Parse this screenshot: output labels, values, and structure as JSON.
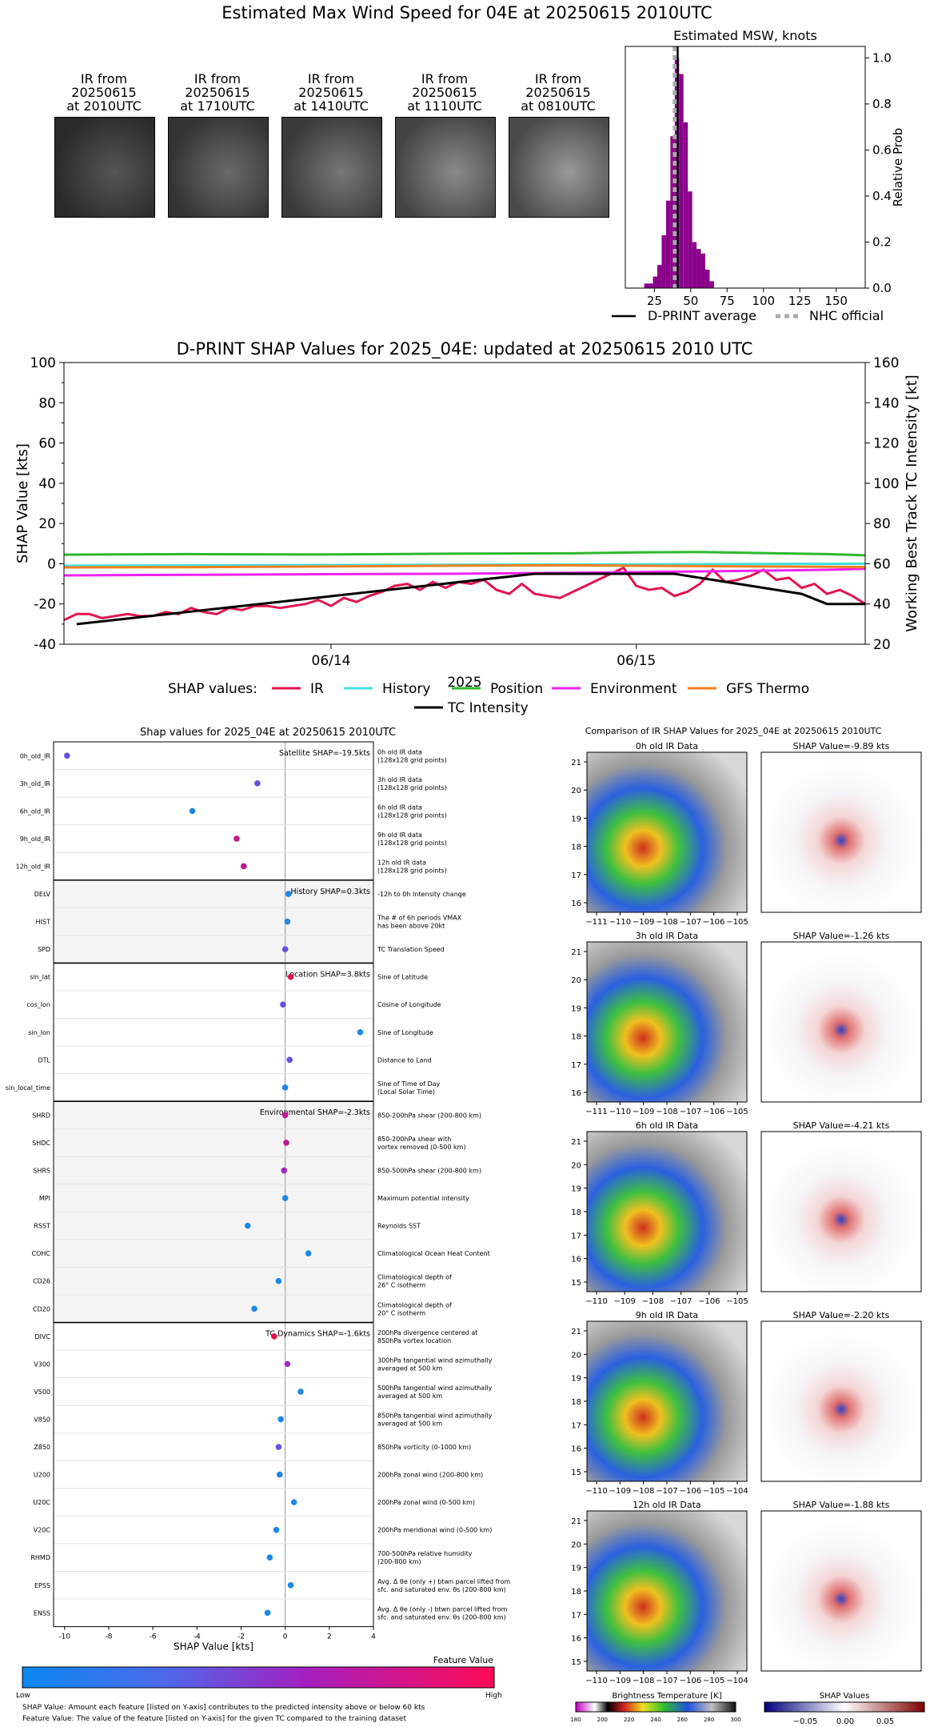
{
  "header": {
    "title": "Estimated Max Wind Speed for 04E at 20250615 2010UTC"
  },
  "ir_thumbs": [
    {
      "label_lines": [
        "IR from",
        "20250615",
        "at 2010UTC"
      ]
    },
    {
      "label_lines": [
        "IR from",
        "20250615",
        "at 1710UTC"
      ]
    },
    {
      "label_lines": [
        "IR from",
        "20250615",
        "at 1410UTC"
      ]
    },
    {
      "label_lines": [
        "IR from",
        "20250615",
        "at 1110UTC"
      ]
    },
    {
      "label_lines": [
        "IR from",
        "20250615",
        "at 0810UTC"
      ]
    }
  ],
  "chart_data": [
    {
      "type": "bar",
      "title": "Estimated MSW, knots",
      "ylabel": "Relative Prob",
      "xlim": [
        5,
        170
      ],
      "ylim": [
        0,
        1.05
      ],
      "xticks": [
        25,
        50,
        75,
        100,
        125,
        150
      ],
      "yticks": [
        0.0,
        0.2,
        0.4,
        0.6,
        0.8,
        1.0
      ],
      "bins": [
        18,
        21,
        24,
        27,
        30,
        33,
        36,
        39,
        42,
        45,
        48,
        51,
        54,
        57,
        60,
        63
      ],
      "bin_width": 3,
      "values": [
        0.02,
        0.02,
        0.05,
        0.1,
        0.23,
        0.38,
        0.66,
        1.0,
        0.93,
        0.72,
        0.42,
        0.2,
        0.17,
        0.15,
        0.08,
        0.03
      ],
      "color": "#8b008b",
      "dprint_average": 41,
      "nhc_official": 39,
      "legend": [
        {
          "label": "D-PRINT average",
          "style": "solid"
        },
        {
          "label": "NHC official",
          "style": "dotted"
        }
      ]
    },
    {
      "type": "line",
      "title": "D-PRINT SHAP Values for 2025_04E: updated at 20250615 2010 UTC",
      "xlabel": "2025",
      "ylabel": "SHAP Value [kts]",
      "y2label": "Working Best Track TC Intensity [kt]",
      "ylim": [
        -40,
        100
      ],
      "y2lim": [
        20,
        160
      ],
      "yticks": [
        -40,
        -20,
        0,
        20,
        40,
        60,
        80,
        100
      ],
      "y2ticks": [
        20,
        40,
        60,
        80,
        100,
        120,
        140,
        160
      ],
      "xticks": [
        {
          "label": "06/14",
          "t": 21
        },
        {
          "label": "06/15",
          "t": 45
        }
      ],
      "tlim": [
        0,
        63
      ],
      "series": [
        {
          "name": "IR",
          "color": "#e0164f",
          "t": [
            0,
            1,
            2,
            3,
            4,
            5,
            6,
            7,
            8,
            9,
            10,
            11,
            12,
            13,
            14,
            15,
            16,
            17,
            18,
            19,
            20,
            21,
            22,
            23,
            24,
            25,
            26,
            27,
            28,
            29,
            30,
            31,
            32,
            33,
            34,
            35,
            36,
            37,
            38,
            39,
            40,
            41,
            42,
            43,
            44,
            45,
            46,
            47,
            48,
            49,
            50,
            51,
            52,
            53,
            54,
            55,
            56,
            57,
            58,
            59,
            60,
            61,
            62,
            63
          ],
          "values": [
            -28,
            -25,
            -25,
            -27,
            -26,
            -25,
            -26,
            -26,
            -24,
            -25,
            -22,
            -24,
            -25,
            -22,
            -23,
            -21,
            -21,
            -22,
            -21,
            -20,
            -18,
            -21,
            -17,
            -19,
            -16,
            -14,
            -11,
            -10,
            -13,
            -9,
            -12,
            -9,
            -10,
            -8,
            -13,
            -15,
            -10,
            -15,
            -16,
            -17,
            -14,
            -11,
            -8,
            -5,
            -2,
            -11,
            -13,
            -12,
            -16,
            -14,
            -10,
            -3,
            -9,
            -8,
            -6,
            -3,
            -8,
            -7,
            -12,
            -10,
            -15,
            -13,
            -16,
            -20
          ]
        },
        {
          "name": "History",
          "color": "#40e0e0",
          "t": [
            0,
            63
          ],
          "values": [
            -1,
            0
          ]
        },
        {
          "name": "Position",
          "color": "#2db82d",
          "t": [
            0,
            10,
            20,
            30,
            40,
            45,
            50,
            55,
            60,
            63
          ],
          "values": [
            4.5,
            4.8,
            4.6,
            5.0,
            5.2,
            5.6,
            5.8,
            5.3,
            4.8,
            4.2
          ]
        },
        {
          "name": "Environment",
          "color": "#ee22ee",
          "t": [
            0,
            10,
            20,
            30,
            40,
            50,
            60,
            63
          ],
          "values": [
            -5.8,
            -5.5,
            -5.2,
            -5.0,
            -4.5,
            -3.8,
            -3.0,
            -2.5
          ]
        },
        {
          "name": "GFS Thermo",
          "color": "#f07f1e",
          "t": [
            0,
            10,
            20,
            30,
            40,
            50,
            60,
            63
          ],
          "values": [
            -1.8,
            -1.7,
            -1.4,
            -1.0,
            -0.8,
            -1.2,
            -1.5,
            -1.6
          ]
        },
        {
          "name": "TC Intensity",
          "color": "#000000",
          "axis": "right",
          "t": [
            1,
            37,
            48,
            58,
            60,
            63
          ],
          "values": [
            30,
            55,
            55,
            45,
            40,
            40
          ]
        }
      ],
      "legend_prefix": "SHAP values:"
    },
    {
      "type": "scatter",
      "title": "Shap values for 2025_04E at 20250615 2010UTC",
      "xlabel": "SHAP Value [kts]",
      "xlim": [
        -10.5,
        4
      ],
      "xticks": [
        -10,
        -8,
        -6,
        -4,
        -2,
        0,
        2,
        4
      ],
      "groups": [
        {
          "label": "Satellite SHAP=-19.5kts",
          "shaded": false,
          "features": [
            {
              "name": "0h_old_IR",
              "desc": [
                "0h old IR data",
                "(128x128 grid points)"
              ],
              "value": -9.89,
              "color": "#6a4de0"
            },
            {
              "name": "3h_old_IR",
              "desc": [
                "3h old IR data",
                "(128x128 grid points)"
              ],
              "value": -1.26,
              "color": "#6a4de0"
            },
            {
              "name": "6h_old_IR",
              "desc": [
                "6h old IR data",
                "(128x128 grid points)"
              ],
              "value": -4.21,
              "color": "#1e88e5"
            },
            {
              "name": "9h_old_IR",
              "desc": [
                "9h old IR data",
                "(128x128 grid points)"
              ],
              "value": -2.2,
              "color": "#c0198f"
            },
            {
              "name": "12h_old_IR",
              "desc": [
                "12h old IR data",
                "(128x128 grid points)"
              ],
              "value": -1.88,
              "color": "#c0198f"
            }
          ]
        },
        {
          "label": "History SHAP=0.3kts",
          "shaded": true,
          "features": [
            {
              "name": "DELV",
              "desc": [
                "-12h to 0h Intensity change"
              ],
              "value": 0.15,
              "color": "#1e88e5"
            },
            {
              "name": "HIST",
              "desc": [
                "The # of 6h periods VMAX",
                "has been above 20kt"
              ],
              "value": 0.1,
              "color": "#1e88e5"
            },
            {
              "name": "SPD",
              "desc": [
                "TC Translation Speed"
              ],
              "value": 0.0,
              "color": "#6a4de0"
            }
          ]
        },
        {
          "label": "Location SHAP=3.8kts",
          "shaded": false,
          "features": [
            {
              "name": "sin_lat",
              "desc": [
                "Sine of Latitude"
              ],
              "value": 0.25,
              "color": "#e0164f"
            },
            {
              "name": "cos_lon",
              "desc": [
                "Cosine of Longitude"
              ],
              "value": -0.1,
              "color": "#6a4de0"
            },
            {
              "name": "sin_lon",
              "desc": [
                "Sine of Longitude"
              ],
              "value": 3.4,
              "color": "#1e88e5"
            },
            {
              "name": "DTL",
              "desc": [
                "Distance to Land"
              ],
              "value": 0.2,
              "color": "#6a4de0"
            },
            {
              "name": "sin_local_time",
              "desc": [
                "Sine of Time of Day",
                "(Local Solar Time)"
              ],
              "value": 0.0,
              "color": "#1e88e5"
            }
          ]
        },
        {
          "label": "Environmental SHAP=-2.3kts",
          "shaded": true,
          "features": [
            {
              "name": "SHRD",
              "desc": [
                "850-200hPa shear (200-800 km)"
              ],
              "value": 0.0,
              "color": "#c0198f"
            },
            {
              "name": "SHDC",
              "desc": [
                "850-200hPa shear with",
                "vortex removed (0-500 km)"
              ],
              "value": 0.05,
              "color": "#c0198f"
            },
            {
              "name": "SHRS",
              "desc": [
                "850-500hPa shear (200-800 km)"
              ],
              "value": -0.05,
              "color": "#9b2bc0"
            },
            {
              "name": "MPI",
              "desc": [
                "Maximum potential intensity"
              ],
              "value": 0.0,
              "color": "#1e88e5"
            },
            {
              "name": "RSST",
              "desc": [
                "Reynolds SST"
              ],
              "value": -1.7,
              "color": "#1e88e5"
            },
            {
              "name": "COHC",
              "desc": [
                "Climatological Ocean Heat Content"
              ],
              "value": 1.05,
              "color": "#1e88e5"
            },
            {
              "name": "CD26",
              "desc": [
                "Climatological depth of",
                "26° C isotherm"
              ],
              "value": -0.3,
              "color": "#1e88e5"
            },
            {
              "name": "CD20",
              "desc": [
                "Climatological depth of",
                "20° C isotherm"
              ],
              "value": -1.4,
              "color": "#1e88e5"
            }
          ]
        },
        {
          "label": "TC Dynamics SHAP=-1.6kts",
          "shaded": false,
          "features": [
            {
              "name": "DIVC",
              "desc": [
                "200hPa divergence centered at",
                "850hPa vortex location"
              ],
              "value": -0.5,
              "color": "#e0164f"
            },
            {
              "name": "V300",
              "desc": [
                "300hPa tangential wind azimuthally",
                "averaged at 500 km"
              ],
              "value": 0.1,
              "color": "#9b2bc0"
            },
            {
              "name": "V500",
              "desc": [
                "500hPa tangential wind azimuthally",
                "averaged at 500 km"
              ],
              "value": 0.7,
              "color": "#1e88e5"
            },
            {
              "name": "V850",
              "desc": [
                "850hPa tangential wind azimuthally",
                "averaged at 500 km"
              ],
              "value": -0.2,
              "color": "#1e88e5"
            },
            {
              "name": "Z850",
              "desc": [
                "850hPa vorticity (0-1000 km)"
              ],
              "value": -0.3,
              "color": "#6a4de0"
            },
            {
              "name": "U200",
              "desc": [
                "200hPa zonal wind (200-800 km)"
              ],
              "value": -0.25,
              "color": "#1e88e5"
            },
            {
              "name": "U20C",
              "desc": [
                "200hPa zonal wind (0-500 km)"
              ],
              "value": 0.4,
              "color": "#1e88e5"
            },
            {
              "name": "V20C",
              "desc": [
                "200hPa meridional wind (0-500 km)"
              ],
              "value": -0.4,
              "color": "#1e88e5"
            },
            {
              "name": "RHMD",
              "desc": [
                "700-500hPa relative humidity",
                "(200-800 km)"
              ],
              "value": -0.7,
              "color": "#1e88e5"
            },
            {
              "name": "EPSS",
              "desc": [
                "Avg. Δ θe (only +) btwn parcel lifted from",
                "sfc. and saturated env. θs (200-800 km)"
              ],
              "value": 0.25,
              "color": "#1e88e5"
            },
            {
              "name": "ENSS",
              "desc": [
                "Avg. Δ θe (only -) btwn parcel lifted from",
                "sfc. and saturated env. θs (200-800 km)"
              ],
              "value": -0.8,
              "color": "#1e88e5"
            }
          ]
        }
      ],
      "colorbar": {
        "title": "Feature Value",
        "low": "Low",
        "high": "High"
      }
    },
    {
      "type": "heatmap",
      "title": "Comparison of IR SHAP Values for 2025_04E at 20250615 2010UTC",
      "panels": [
        {
          "ir_title": "0h old IR Data",
          "shap_title": "SHAP Value=-9.89 kts",
          "xticks": [
            "−111",
            "−110",
            "−109",
            "−108",
            "−107",
            "−106",
            "−105"
          ],
          "yticks": [
            "21",
            "20",
            "19",
            "18",
            "17",
            "16"
          ]
        },
        {
          "ir_title": "3h old IR Data",
          "shap_title": "SHAP Value=-1.26 kts",
          "xticks": [
            "−111",
            "−110",
            "−109",
            "−108",
            "−107",
            "−106",
            "−105"
          ],
          "yticks": [
            "21",
            "20",
            "19",
            "18",
            "17",
            "16"
          ]
        },
        {
          "ir_title": "6h old IR Data",
          "shap_title": "SHAP Value=-4.21 kts",
          "xticks": [
            "−110",
            "−109",
            "−108",
            "−107",
            "−106",
            "−105"
          ],
          "yticks": [
            "21",
            "20",
            "19",
            "18",
            "17",
            "16",
            "15"
          ]
        },
        {
          "ir_title": "9h old IR Data",
          "shap_title": "SHAP Value=-2.20 kts",
          "xticks": [
            "−110",
            "−109",
            "−108",
            "−107",
            "−106",
            "−105",
            "−104"
          ],
          "yticks": [
            "21",
            "20",
            "19",
            "18",
            "17",
            "16",
            "15"
          ]
        },
        {
          "ir_title": "12h old IR Data",
          "shap_title": "SHAP Value=-1.88 kts",
          "xticks": [
            "−110",
            "−109",
            "−108",
            "−107",
            "−106",
            "−105",
            "−104"
          ],
          "yticks": [
            "21",
            "20",
            "19",
            "18",
            "17",
            "16",
            "15"
          ]
        }
      ],
      "bt_colorbar": {
        "label": "Brightness Temperature [K]",
        "ticks": [
          "180",
          "200",
          "220",
          "240",
          "260",
          "280",
          "300"
        ]
      },
      "shap_colorbar": {
        "label": "SHAP Values",
        "ticks": [
          "−0.05",
          "0.00",
          "0.05"
        ]
      }
    }
  ],
  "footnotes": {
    "line1": "SHAP Value: Amount each feature [listed on Y-axis] contributes to the predicted intensity above or below 60 kts",
    "line2": "Feature Value: The value of the feature [listed on Y-axis] for the given TC compared to the training dataset"
  }
}
